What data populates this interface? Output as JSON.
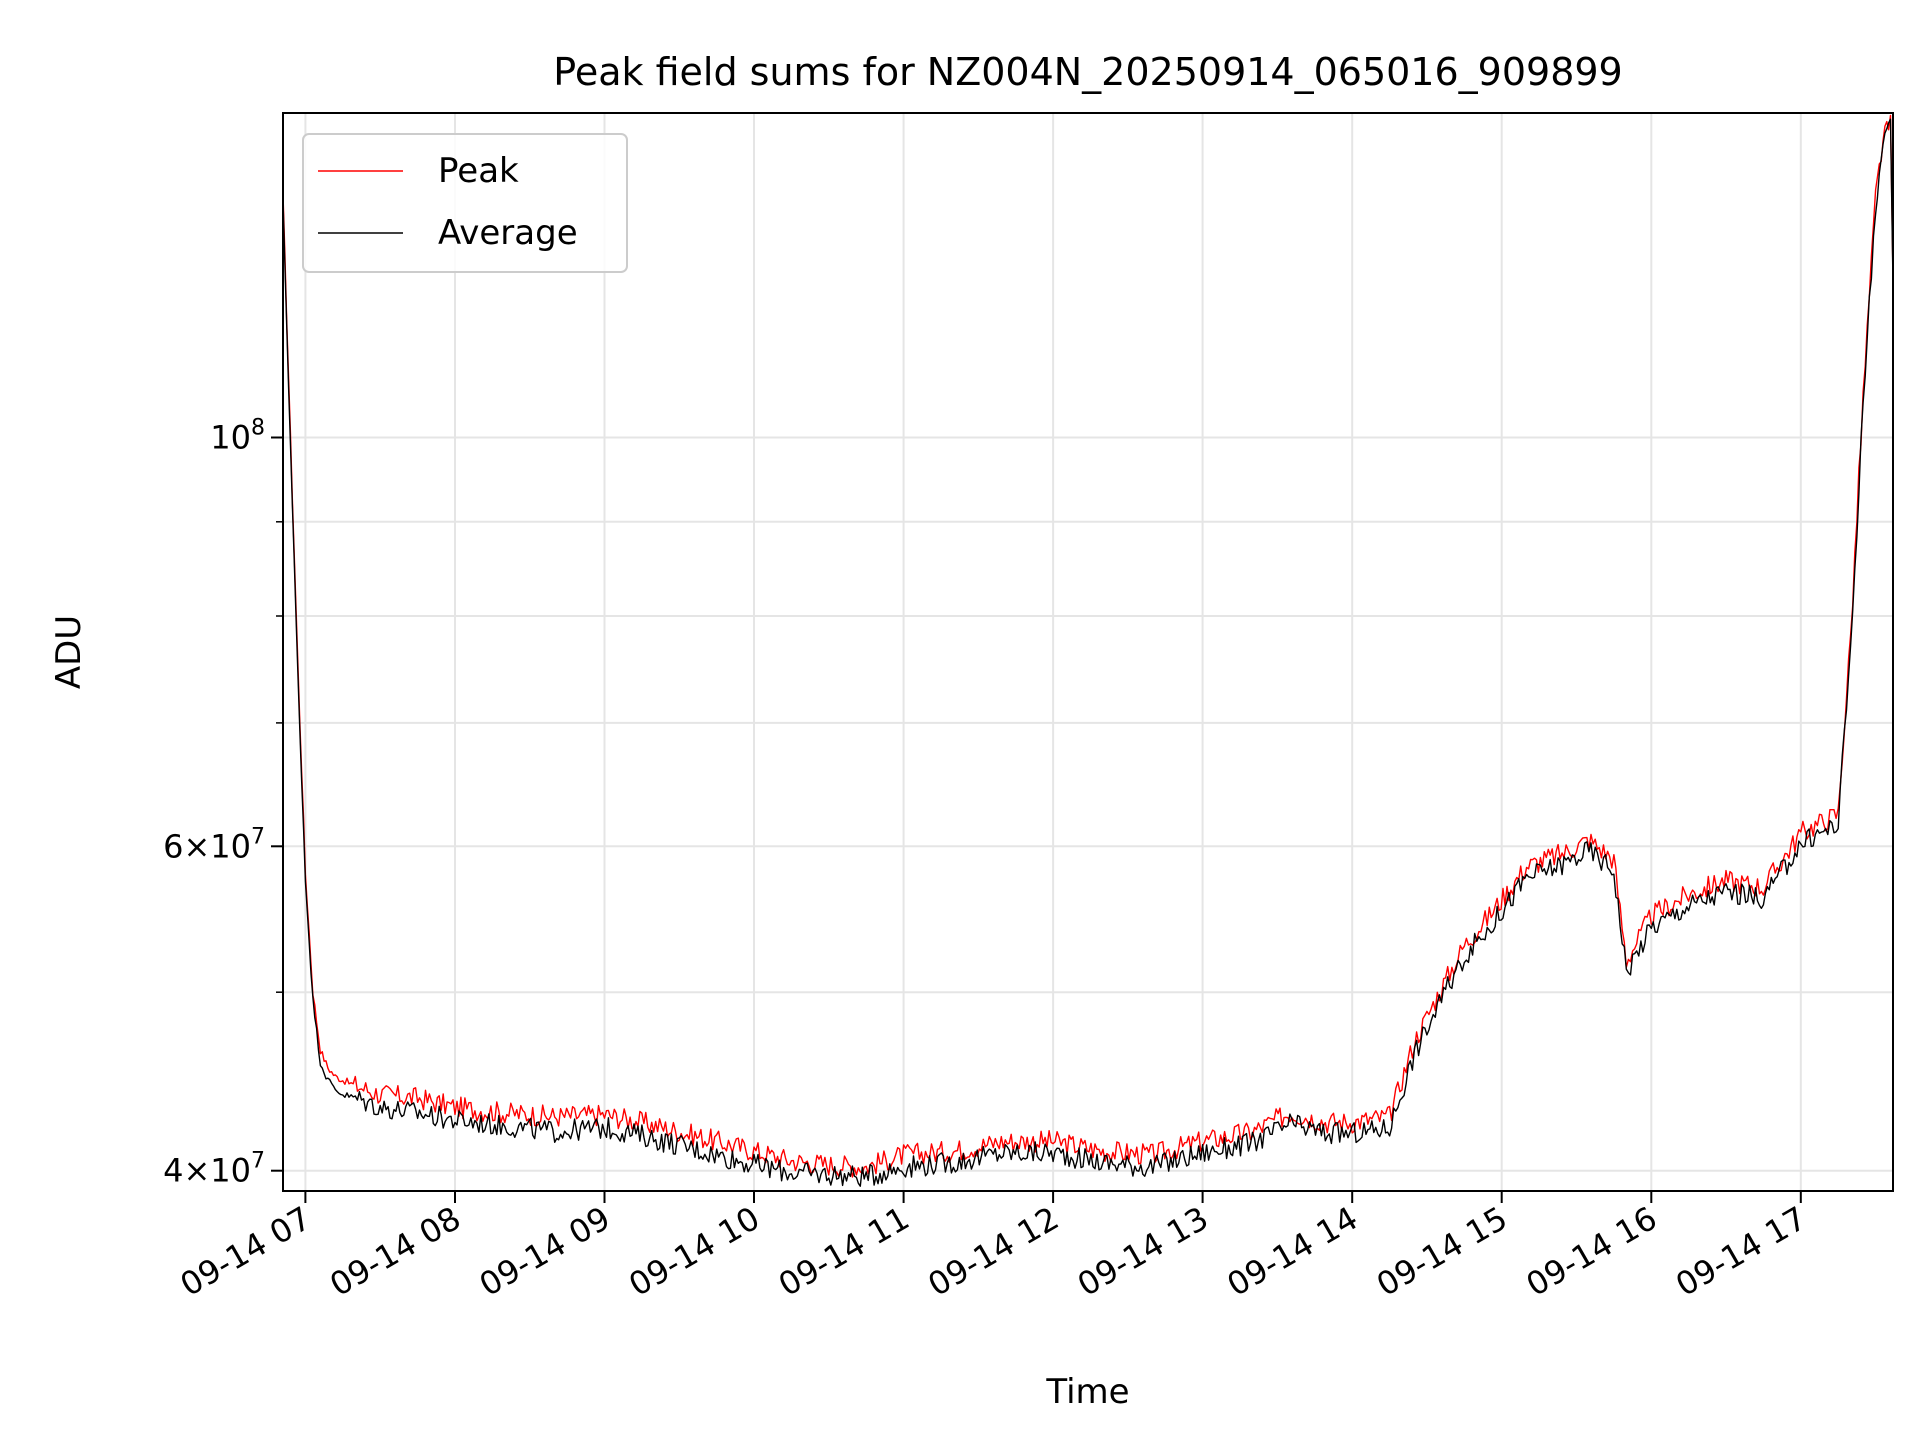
{
  "chart_data": {
    "type": "line",
    "title": "Peak field sums for NZ004N_20250914_065016_909899",
    "xlabel": "Time",
    "ylabel": "ADU",
    "yscale": "log",
    "ylim": [
      39000000,
      150000000
    ],
    "xlim": [
      "2025-09-14T06:51",
      "2025-09-14T17:37"
    ],
    "grid": true,
    "legend_position": "top-left",
    "x_ticks": [
      {
        "label": "09-14 07",
        "t": "2025-09-14T07:00"
      },
      {
        "label": "09-14 08",
        "t": "2025-09-14T08:00"
      },
      {
        "label": "09-14 09",
        "t": "2025-09-14T09:00"
      },
      {
        "label": "09-14 10",
        "t": "2025-09-14T10:00"
      },
      {
        "label": "09-14 11",
        "t": "2025-09-14T11:00"
      },
      {
        "label": "09-14 12",
        "t": "2025-09-14T12:00"
      },
      {
        "label": "09-14 13",
        "t": "2025-09-14T13:00"
      },
      {
        "label": "09-14 14",
        "t": "2025-09-14T14:00"
      },
      {
        "label": "09-14 15",
        "t": "2025-09-14T15:00"
      },
      {
        "label": "09-14 16",
        "t": "2025-09-14T16:00"
      },
      {
        "label": "09-14 17",
        "t": "2025-09-14T17:00"
      }
    ],
    "y_major_ticks": [
      {
        "mant": "4",
        "exp": "7",
        "value": 40000000
      },
      {
        "mant": "6",
        "exp": "7",
        "value": 60000000
      },
      {
        "mant": "10",
        "exp": "8",
        "value": 100000000
      }
    ],
    "y_minor_ticks": [
      50000000,
      70000000,
      80000000,
      90000000
    ],
    "series": [
      {
        "name": "Peak",
        "color": "#ff0000",
        "x": [
          "2025-09-14T06:51",
          "2025-09-14T06:54",
          "2025-09-14T06:57",
          "2025-09-14T07:00",
          "2025-09-14T07:03",
          "2025-09-14T07:06",
          "2025-09-14T07:09",
          "2025-09-14T07:12",
          "2025-09-14T07:15",
          "2025-09-14T07:20",
          "2025-09-14T07:30",
          "2025-09-14T07:45",
          "2025-09-14T08:00",
          "2025-09-14T08:20",
          "2025-09-14T08:40",
          "2025-09-14T09:00",
          "2025-09-14T09:15",
          "2025-09-14T09:30",
          "2025-09-14T09:45",
          "2025-09-14T10:00",
          "2025-09-14T10:15",
          "2025-09-14T10:30",
          "2025-09-14T10:45",
          "2025-09-14T11:00",
          "2025-09-14T11:20",
          "2025-09-14T11:40",
          "2025-09-14T12:00",
          "2025-09-14T12:20",
          "2025-09-14T12:40",
          "2025-09-14T13:00",
          "2025-09-14T13:20",
          "2025-09-14T13:35",
          "2025-09-14T13:50",
          "2025-09-14T14:00",
          "2025-09-14T14:15",
          "2025-09-14T14:25",
          "2025-09-14T14:35",
          "2025-09-14T14:45",
          "2025-09-14T14:55",
          "2025-09-14T15:10",
          "2025-09-14T15:25",
          "2025-09-14T15:35",
          "2025-09-14T15:45",
          "2025-09-14T15:50",
          "2025-09-14T16:00",
          "2025-09-14T16:15",
          "2025-09-14T16:30",
          "2025-09-14T16:45",
          "2025-09-14T17:00",
          "2025-09-14T17:10",
          "2025-09-14T17:15",
          "2025-09-14T17:20",
          "2025-09-14T17:25",
          "2025-09-14T17:30",
          "2025-09-14T17:33",
          "2025-09-14T17:36",
          "2025-09-14T17:37"
        ],
        "values": [
          135000000,
          100000000,
          75000000,
          58000000,
          50000000,
          46500000,
          45500000,
          45000000,
          44800000,
          44500000,
          44000000,
          43800000,
          43300000,
          43000000,
          42800000,
          42900000,
          42500000,
          42000000,
          41500000,
          41000000,
          40500000,
          40300000,
          40200000,
          40800000,
          41000000,
          41500000,
          41500000,
          41000000,
          40800000,
          41500000,
          42000000,
          43000000,
          42500000,
          42500000,
          42800000,
          47000000,
          50000000,
          53000000,
          55000000,
          58500000,
          59500000,
          60500000,
          59000000,
          52000000,
          55000000,
          56500000,
          57500000,
          57000000,
          61000000,
          62000000,
          62500000,
          78000000,
          105000000,
          135000000,
          145000000,
          148000000,
          122000000
        ]
      },
      {
        "name": "Average",
        "color": "#000000",
        "x": [
          "2025-09-14T06:51",
          "2025-09-14T06:54",
          "2025-09-14T06:57",
          "2025-09-14T07:00",
          "2025-09-14T07:03",
          "2025-09-14T07:06",
          "2025-09-14T07:09",
          "2025-09-14T07:12",
          "2025-09-14T07:15",
          "2025-09-14T07:20",
          "2025-09-14T07:30",
          "2025-09-14T07:45",
          "2025-09-14T08:00",
          "2025-09-14T08:20",
          "2025-09-14T08:40",
          "2025-09-14T09:00",
          "2025-09-14T09:15",
          "2025-09-14T09:30",
          "2025-09-14T09:45",
          "2025-09-14T10:00",
          "2025-09-14T10:15",
          "2025-09-14T10:30",
          "2025-09-14T10:45",
          "2025-09-14T11:00",
          "2025-09-14T11:20",
          "2025-09-14T11:40",
          "2025-09-14T12:00",
          "2025-09-14T12:20",
          "2025-09-14T12:40",
          "2025-09-14T13:00",
          "2025-09-14T13:20",
          "2025-09-14T13:35",
          "2025-09-14T13:50",
          "2025-09-14T14:00",
          "2025-09-14T14:15",
          "2025-09-14T14:25",
          "2025-09-14T14:35",
          "2025-09-14T14:45",
          "2025-09-14T14:55",
          "2025-09-14T15:10",
          "2025-09-14T15:25",
          "2025-09-14T15:35",
          "2025-09-14T15:45",
          "2025-09-14T15:50",
          "2025-09-14T16:00",
          "2025-09-14T16:15",
          "2025-09-14T16:30",
          "2025-09-14T16:45",
          "2025-09-14T17:00",
          "2025-09-14T17:10",
          "2025-09-14T17:15",
          "2025-09-14T17:20",
          "2025-09-14T17:25",
          "2025-09-14T17:30",
          "2025-09-14T17:33",
          "2025-09-14T17:36",
          "2025-09-14T17:37"
        ],
        "values": [
          134000000,
          99000000,
          74000000,
          57500000,
          49500000,
          45800000,
          44800000,
          44300000,
          44000000,
          43800000,
          43300000,
          43000000,
          42600000,
          42300000,
          42000000,
          42200000,
          41800000,
          41300000,
          40800000,
          40300000,
          39900000,
          39800000,
          39700000,
          40200000,
          40400000,
          40900000,
          40900000,
          40400000,
          40200000,
          40900000,
          41400000,
          42400000,
          41900000,
          41900000,
          42200000,
          46300000,
          49300000,
          52300000,
          54200000,
          57700000,
          58700000,
          59700000,
          58200000,
          51300000,
          54200000,
          55700000,
          56700000,
          56200000,
          60200000,
          61200000,
          61700000,
          77000000,
          104000000,
          134000000,
          144000000,
          147000000,
          121000000
        ]
      }
    ]
  }
}
